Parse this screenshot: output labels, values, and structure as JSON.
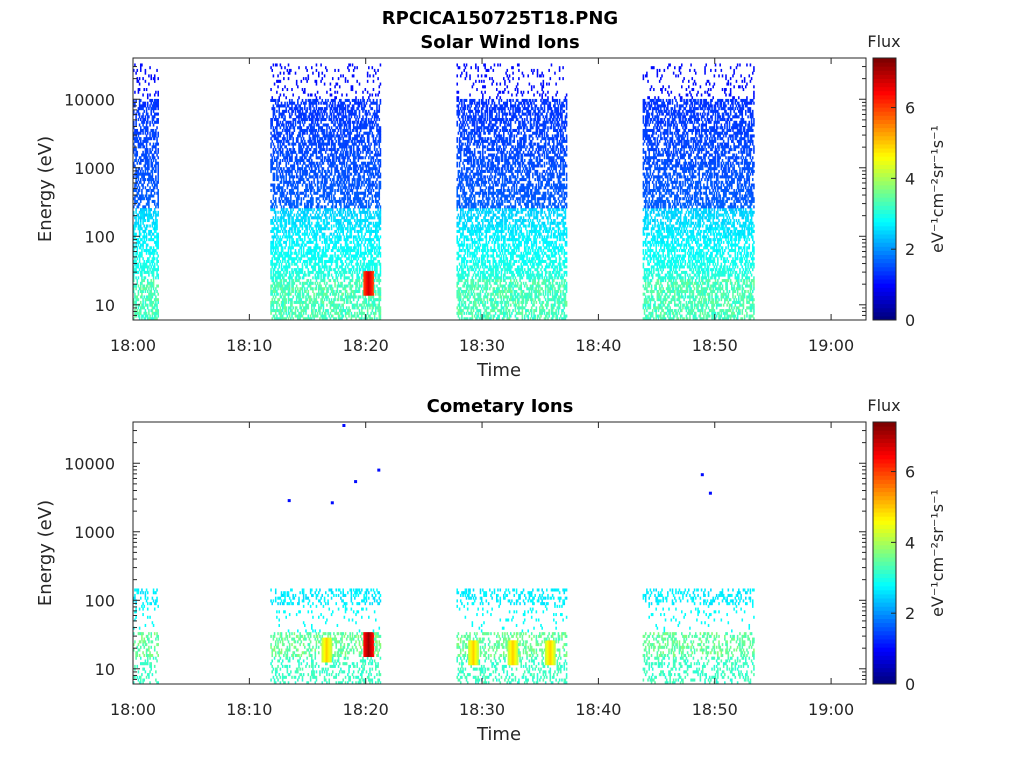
{
  "figure_title": "RPCICA150725T18.PNG",
  "chart_data": [
    {
      "type": "heatmap",
      "title": "Solar Wind Ions",
      "xlabel": "Time",
      "ylabel": "Energy (eV)",
      "x_ticks": [
        "18:00",
        "18:10",
        "18:20",
        "18:30",
        "18:40",
        "18:50",
        "19:00"
      ],
      "xlim_minutes": [
        0,
        63
      ],
      "y_ticks": [
        "10",
        "100",
        "1000",
        "10000"
      ],
      "y_scale": "log",
      "ylim": [
        6,
        40000
      ],
      "colorbar": {
        "label": "Flux",
        "units": "eV⁻¹cm⁻²sr⁻¹s⁻¹",
        "ticks": [
          "0",
          "2",
          "4",
          "6"
        ],
        "range": [
          0,
          7.4
        ],
        "colormap": "jet"
      },
      "segments": [
        {
          "start_min": 0.0,
          "end_min": 2.2
        },
        {
          "start_min": 11.8,
          "end_min": 21.3
        },
        {
          "start_min": 27.8,
          "end_min": 37.3
        },
        {
          "start_min": 43.8,
          "end_min": 53.4
        }
      ],
      "hotspots": [
        {
          "time_min": 20.2,
          "energy_eV": 20,
          "flux": 6.8
        }
      ]
    },
    {
      "type": "heatmap",
      "title": "Cometary Ions",
      "xlabel": "Time",
      "ylabel": "Energy (eV)",
      "x_ticks": [
        "18:00",
        "18:10",
        "18:20",
        "18:30",
        "18:40",
        "18:50",
        "19:00"
      ],
      "xlim_minutes": [
        0,
        63
      ],
      "y_ticks": [
        "10",
        "100",
        "1000",
        "10000"
      ],
      "y_scale": "log",
      "ylim": [
        6,
        40000
      ],
      "colorbar": {
        "label": "Flux",
        "units": "eV⁻¹cm⁻²sr⁻¹s⁻¹",
        "ticks": [
          "0",
          "2",
          "4",
          "6"
        ],
        "range": [
          0,
          7.4
        ],
        "colormap": "jet"
      },
      "segments": [
        {
          "start_min": 0.0,
          "end_min": 2.2
        },
        {
          "start_min": 11.8,
          "end_min": 21.3
        },
        {
          "start_min": 27.8,
          "end_min": 37.3
        },
        {
          "start_min": 43.8,
          "end_min": 53.4
        }
      ],
      "hotspots": [
        {
          "time_min": 20.2,
          "energy_eV": 22,
          "flux": 7.2
        },
        {
          "time_min": 16.6,
          "energy_eV": 18,
          "flux": 5.0
        },
        {
          "time_min": 29.2,
          "energy_eV": 16,
          "flux": 5.0
        },
        {
          "time_min": 32.6,
          "energy_eV": 16,
          "flux": 5.0
        },
        {
          "time_min": 35.8,
          "energy_eV": 16,
          "flux": 5.0
        }
      ],
      "scattered_points": [
        {
          "time_min": 13.3,
          "energy_eV": 2800
        },
        {
          "time_min": 17.0,
          "energy_eV": 2600
        },
        {
          "time_min": 18.0,
          "energy_eV": 35000
        },
        {
          "time_min": 19.0,
          "energy_eV": 5300
        },
        {
          "time_min": 21.0,
          "energy_eV": 7800
        },
        {
          "time_min": 48.8,
          "energy_eV": 6700
        },
        {
          "time_min": 49.5,
          "energy_eV": 3600
        }
      ]
    }
  ]
}
